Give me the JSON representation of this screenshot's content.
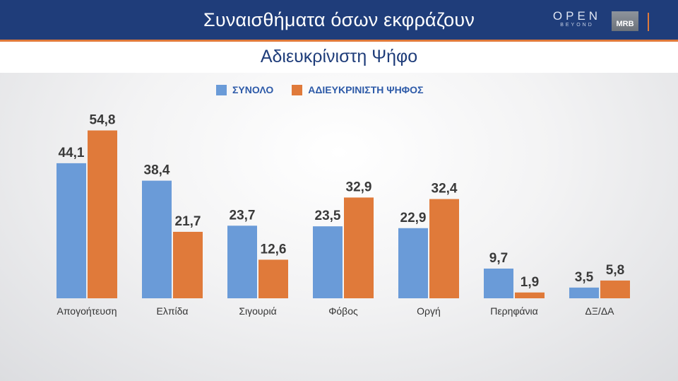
{
  "header": {
    "title": "Συναισθήματα όσων εκφράζουν",
    "subtitle": "Αδιευκρίνιστη Ψήφο",
    "logo_open": "OPEN",
    "logo_open_sub": "BEYOND",
    "logo_mrb": "MRB"
  },
  "colors": {
    "header_bg": "#1f3d7a",
    "accent": "#e07a3a",
    "series_total": "#6a9bd8",
    "series_undecided": "#e07a3a"
  },
  "chart_data": {
    "type": "bar",
    "title": "Συναισθήματα όσων εκφράζουν",
    "subtitle": "Αδιευκρίνιστη Ψήφο",
    "categories": [
      "Απογοήτευση",
      "Ελπίδα",
      "Σιγουριά",
      "Φόβος",
      "Οργή",
      "Περηφάνια",
      "ΔΞ/ΔΑ"
    ],
    "series": [
      {
        "name": "ΣΥΝΟΛΟ",
        "color": "#6a9bd8",
        "values": [
          44.1,
          38.4,
          23.7,
          23.5,
          22.9,
          9.7,
          3.5
        ],
        "labels": [
          "44,1",
          "38,4",
          "23,7",
          "23,5",
          "22,9",
          "9,7",
          "3,5"
        ]
      },
      {
        "name": "ΑΔΙΕΥΚΡΙΝΙΣΤΗ ΨΗΦΟΣ",
        "color": "#e07a3a",
        "values": [
          54.8,
          21.7,
          12.6,
          32.9,
          32.4,
          1.9,
          5.8
        ],
        "labels": [
          "54,8",
          "21,7",
          "12,6",
          "32,9",
          "32,4",
          "1,9",
          "5,8"
        ]
      }
    ],
    "ylim": [
      0,
      60
    ],
    "grid": false,
    "legend": "top-left",
    "data_labels": true
  }
}
